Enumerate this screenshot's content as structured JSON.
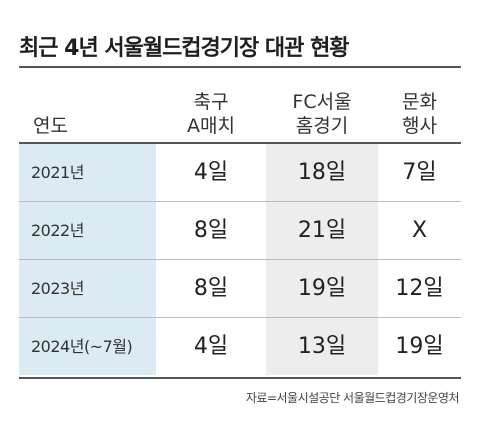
{
  "chart_data": {
    "type": "table",
    "title": "최근 4년 서울월드컵경기장 대관 현황",
    "columns": [
      "연도",
      "축구\nA매치",
      "FC서울\n홈경기",
      "문화\n행사"
    ],
    "rows": [
      [
        "2021년",
        "4일",
        "18일",
        "7일"
      ],
      [
        "2022년",
        "8일",
        "21일",
        "X"
      ],
      [
        "2023년",
        "8일",
        "19일",
        "12일"
      ],
      [
        "2024년(~7월)",
        "4일",
        "13일",
        "19일"
      ]
    ],
    "source": "자료=서울시설공단 서울월드컵경기장운영처"
  }
}
